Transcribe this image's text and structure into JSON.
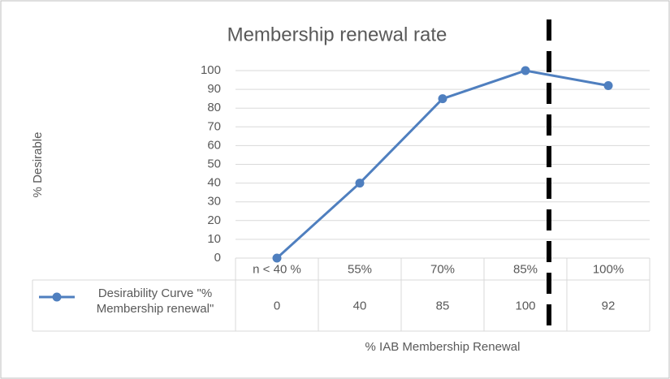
{
  "chart_data": {
    "type": "line",
    "title": "Membership renewal rate",
    "y_label": "% Desirable",
    "x_label": "% IAB Membership Renewal",
    "categories": [
      "n < 40 %",
      "55%",
      "70%",
      "85%",
      "100%"
    ],
    "series": [
      {
        "name": "Desirability Curve \"% Membership renewal\"",
        "color": "#4f7fbf",
        "values": [
          0,
          40,
          85,
          100,
          92
        ]
      }
    ],
    "ylim": [
      0,
      100
    ],
    "yticks": [
      0,
      10,
      20,
      30,
      40,
      50,
      60,
      70,
      80,
      90,
      100
    ],
    "grid": true,
    "data_table": true
  }
}
